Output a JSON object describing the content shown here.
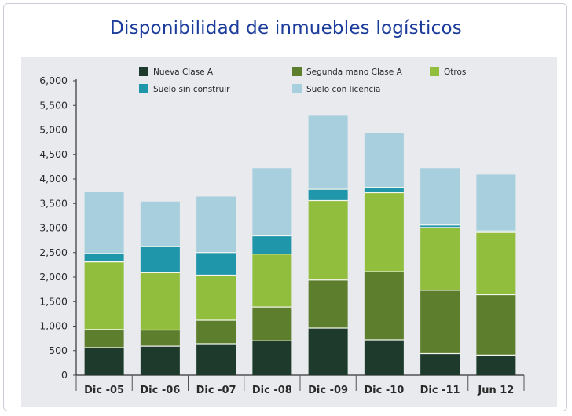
{
  "chart_data": {
    "type": "bar",
    "stacked": true,
    "title": "Disponibilidad de inmuebles logísticos",
    "xlabel": "",
    "ylabel": "",
    "ylim": [
      0,
      6000
    ],
    "yticks": [
      0,
      500,
      1000,
      1500,
      2000,
      2500,
      3000,
      3500,
      4000,
      4500,
      5000,
      5500,
      6000
    ],
    "ytick_labels": [
      "0",
      "500",
      "1,000",
      "1,500",
      "2,000",
      "2,500",
      "3,000",
      "3,500",
      "4,000",
      "4,500",
      "5,000",
      "5,500",
      "6,000"
    ],
    "categories": [
      "Dic -05",
      "Dic -06",
      "Dic -07",
      "Dic -08",
      "Dic -09",
      "Dic -10",
      "Dic -11",
      "Jun 12"
    ],
    "legend_position": "top",
    "series": [
      {
        "name": "Nueva Clase A",
        "color": "#1d3a2c",
        "values": [
          560,
          590,
          640,
          700,
          960,
          720,
          440,
          410
        ]
      },
      {
        "name": "Segunda mano Clase A",
        "color": "#5d7f2d",
        "values": [
          370,
          330,
          480,
          690,
          980,
          1390,
          1290,
          1230
        ]
      },
      {
        "name": "Otros",
        "color": "#92be3e",
        "values": [
          1380,
          1170,
          920,
          1080,
          1620,
          1610,
          1280,
          1270
        ]
      },
      {
        "name": "Suelo sin construir",
        "color": "#1f96aa",
        "values": [
          170,
          530,
          460,
          370,
          230,
          110,
          50,
          30
        ]
      },
      {
        "name": "Suelo con licencia",
        "color": "#a8cfdd",
        "values": [
          1250,
          920,
          1140,
          1380,
          1500,
          1110,
          1160,
          1150
        ]
      }
    ]
  }
}
